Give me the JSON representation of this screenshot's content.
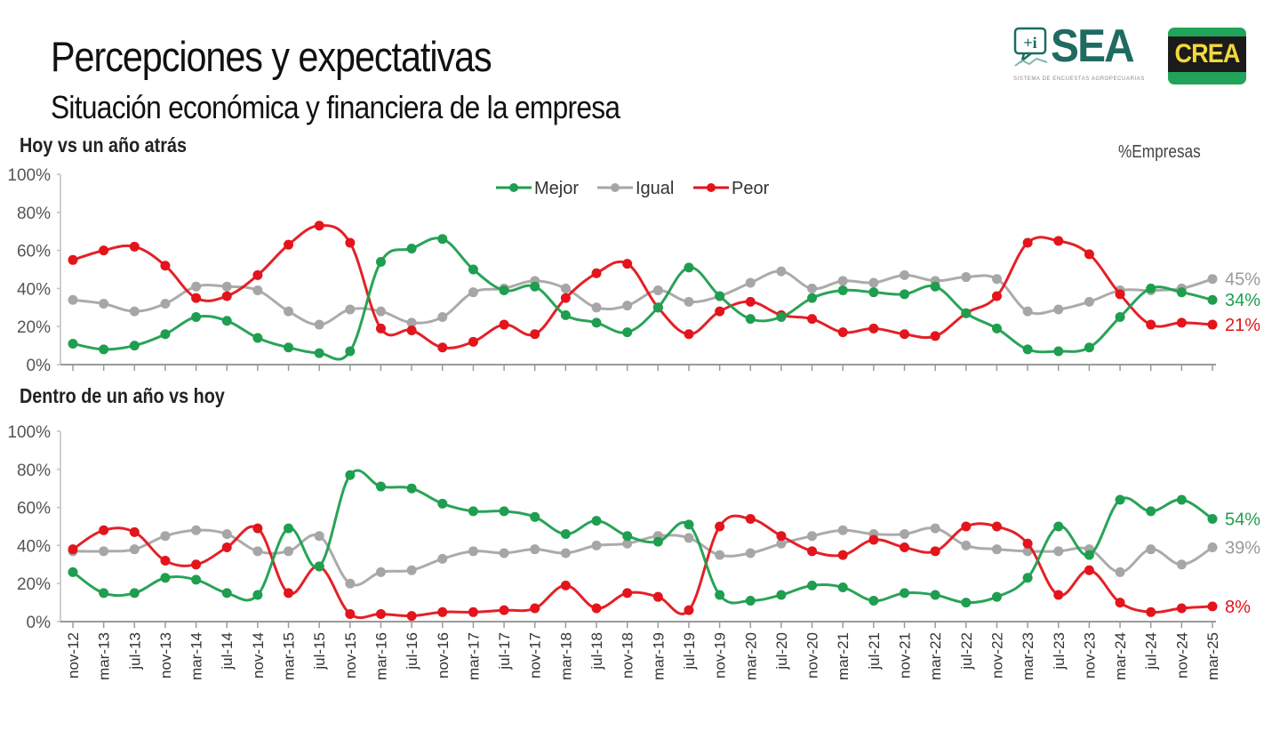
{
  "header": {
    "title": "Percepciones y expectativas",
    "subtitle": "Situación económica y financiera de la empresa",
    "unit_label": "%Empresas"
  },
  "logos": {
    "sea": {
      "text": "SEA",
      "caption": "SISTEMA DE ENCUESTAS AGROPECUARIAS",
      "icon_glyph": "+i",
      "color": "#1f6b62"
    },
    "crea": {
      "text": "CREA",
      "bg": "#22a35a",
      "band": "#1b1b1b",
      "fg": "#f2d93a"
    }
  },
  "colors": {
    "Mejor": "#1e9e4f",
    "Igual": "#a6a6a6",
    "Peor": "#e3141b"
  },
  "chart_data": [
    {
      "type": "line",
      "title": "Hoy vs un año atrás",
      "xlabel": "",
      "ylabel": "%Empresas",
      "ylim": [
        0,
        100
      ],
      "yticks": [
        "0%",
        "20%",
        "40%",
        "60%",
        "80%",
        "100%"
      ],
      "grid": false,
      "legend": {
        "position": "top-center",
        "entries": [
          "Mejor",
          "Igual",
          "Peor"
        ]
      },
      "categories": [
        "nov-12",
        "mar-13",
        "jul-13",
        "nov-13",
        "mar-14",
        "jul-14",
        "nov-14",
        "mar-15",
        "jul-15",
        "nov-15",
        "mar-16",
        "jul-16",
        "nov-16",
        "mar-17",
        "jul-17",
        "nov-17",
        "mar-18",
        "jul-18",
        "nov-18",
        "mar-19",
        "jul-19",
        "nov-19",
        "mar-20",
        "jul-20",
        "nov-20",
        "mar-21",
        "jul-21",
        "nov-21",
        "mar-22",
        "jul-22",
        "nov-22",
        "mar-23",
        "jul-23",
        "nov-23",
        "mar-24",
        "jul-24",
        "nov-24",
        "mar-25"
      ],
      "series": [
        {
          "name": "Mejor",
          "values": [
            11,
            8,
            10,
            16,
            25,
            23,
            14,
            9,
            6,
            7,
            54,
            61,
            66,
            50,
            39,
            41,
            26,
            22,
            17,
            30,
            51,
            36,
            24,
            25,
            35,
            39,
            38,
            37,
            41,
            27,
            19,
            8,
            7,
            9,
            25,
            40,
            38,
            34
          ]
        },
        {
          "name": "Igual",
          "values": [
            34,
            32,
            28,
            32,
            41,
            41,
            39,
            28,
            21,
            29,
            28,
            22,
            25,
            38,
            40,
            44,
            40,
            30,
            31,
            39,
            33,
            36,
            43,
            49,
            40,
            44,
            43,
            47,
            44,
            46,
            45,
            28,
            29,
            33,
            39,
            39,
            40,
            45
          ]
        },
        {
          "name": "Peor",
          "values": [
            55,
            60,
            62,
            52,
            35,
            36,
            47,
            63,
            73,
            64,
            19,
            18,
            9,
            12,
            21,
            16,
            35,
            48,
            53,
            30,
            16,
            28,
            33,
            26,
            24,
            17,
            19,
            16,
            15,
            27,
            36,
            64,
            65,
            58,
            37,
            21,
            22,
            21
          ]
        }
      ],
      "end_labels": {
        "Mejor": "34%",
        "Igual": "45%",
        "Peor": "21%"
      }
    },
    {
      "type": "line",
      "title": "Dentro de un año vs hoy",
      "xlabel": "",
      "ylabel": "%Empresas",
      "ylim": [
        0,
        100
      ],
      "yticks": [
        "0%",
        "20%",
        "40%",
        "60%",
        "80%",
        "100%"
      ],
      "grid": false,
      "categories": [
        "nov-12",
        "mar-13",
        "jul-13",
        "nov-13",
        "mar-14",
        "jul-14",
        "nov-14",
        "mar-15",
        "jul-15",
        "nov-15",
        "mar-16",
        "jul-16",
        "nov-16",
        "mar-17",
        "jul-17",
        "nov-17",
        "mar-18",
        "jul-18",
        "nov-18",
        "mar-19",
        "jul-19",
        "nov-19",
        "mar-20",
        "jul-20",
        "nov-20",
        "mar-21",
        "jul-21",
        "nov-21",
        "mar-22",
        "jul-22",
        "nov-22",
        "mar-23",
        "jul-23",
        "nov-23",
        "mar-24",
        "jul-24",
        "nov-24",
        "mar-25"
      ],
      "series": [
        {
          "name": "Mejor",
          "values": [
            26,
            15,
            15,
            23,
            22,
            15,
            14,
            49,
            29,
            77,
            71,
            70,
            62,
            58,
            58,
            55,
            46,
            53,
            45,
            42,
            51,
            14,
            11,
            14,
            19,
            18,
            11,
            15,
            14,
            10,
            13,
            23,
            50,
            35,
            64,
            58,
            64,
            54
          ]
        },
        {
          "name": "Igual",
          "values": [
            37,
            37,
            38,
            45,
            48,
            46,
            37,
            37,
            45,
            20,
            26,
            27,
            33,
            37,
            36,
            38,
            36,
            40,
            41,
            45,
            44,
            35,
            36,
            41,
            45,
            48,
            46,
            46,
            49,
            40,
            38,
            37,
            37,
            38,
            26,
            38,
            30,
            39
          ]
        },
        {
          "name": "Peor",
          "values": [
            38,
            48,
            47,
            32,
            30,
            39,
            49,
            15,
            29,
            4,
            4,
            3,
            5,
            5,
            6,
            7,
            19,
            7,
            15,
            13,
            6,
            50,
            54,
            45,
            37,
            35,
            43,
            39,
            37,
            50,
            50,
            41,
            14,
            27,
            10,
            5,
            7,
            8
          ]
        }
      ],
      "end_labels": {
        "Mejor": "54%",
        "Igual": "39%",
        "Peor": "8%"
      }
    }
  ]
}
